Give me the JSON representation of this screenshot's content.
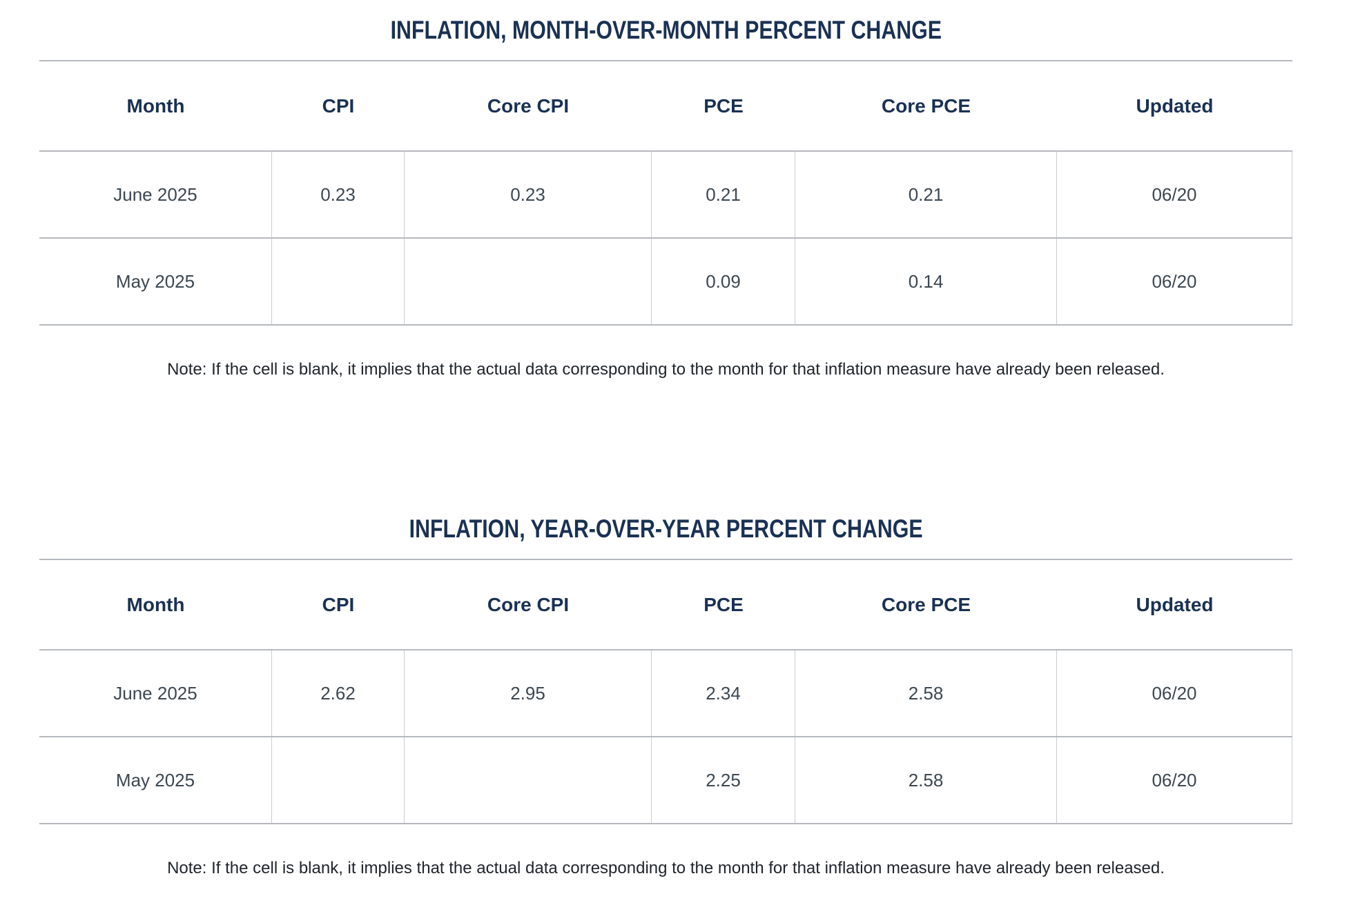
{
  "page": {
    "background": "#ffffff",
    "accent_navy": "#1a3153",
    "cell_text_color": "#3c4751",
    "rule_color": "#b5b8bc",
    "cell_border_color": "#c9ccd0"
  },
  "chart_data": [
    {
      "type": "table",
      "title": "INFLATION, MONTH-OVER-MONTH PERCENT CHANGE",
      "columns": [
        "Month",
        "CPI",
        "Core CPI",
        "PCE",
        "Core PCE",
        "Updated"
      ],
      "rows": [
        [
          "June 2025",
          "0.23",
          "0.23",
          "0.21",
          "0.21",
          "06/20"
        ],
        [
          "May 2025",
          "",
          "",
          "0.09",
          "0.14",
          "06/20"
        ]
      ],
      "note": "Note: If the cell is blank, it implies that the actual data corresponding to the month for that inflation measure have already been released."
    },
    {
      "type": "table",
      "title": "INFLATION, YEAR-OVER-YEAR PERCENT CHANGE",
      "columns": [
        "Month",
        "CPI",
        "Core CPI",
        "PCE",
        "Core PCE",
        "Updated"
      ],
      "rows": [
        [
          "June 2025",
          "2.62",
          "2.95",
          "2.34",
          "2.58",
          "06/20"
        ],
        [
          "May 2025",
          "",
          "",
          "2.25",
          "2.58",
          "06/20"
        ]
      ],
      "note": "Note: If the cell is blank, it implies that the actual data corresponding to the month for that inflation measure have already been released."
    }
  ]
}
